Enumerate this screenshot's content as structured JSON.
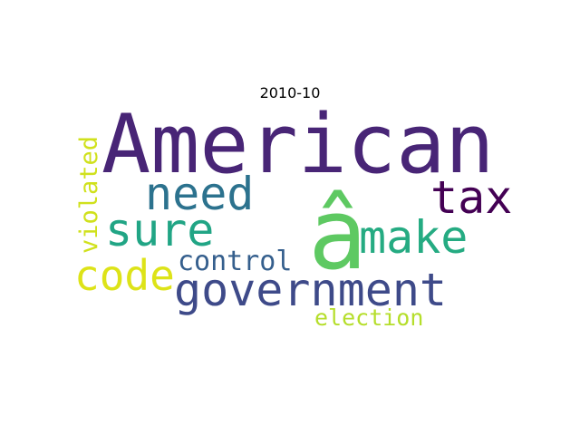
{
  "title": "2010-10",
  "words": [
    {
      "text": "American",
      "color": "#482576"
    },
    {
      "text": "â",
      "color": "#5ec962"
    },
    {
      "text": "tax",
      "color": "#440154"
    },
    {
      "text": "need",
      "color": "#2c728e"
    },
    {
      "text": "make",
      "color": "#25ab82"
    },
    {
      "text": "sure",
      "color": "#21a585"
    },
    {
      "text": "government",
      "color": "#3e4a89"
    },
    {
      "text": "code",
      "color": "#dde318"
    },
    {
      "text": "control",
      "color": "#355f8d"
    },
    {
      "text": "violated",
      "color": "#d0e11c"
    },
    {
      "text": "election",
      "color": "#b5de2b"
    }
  ]
}
